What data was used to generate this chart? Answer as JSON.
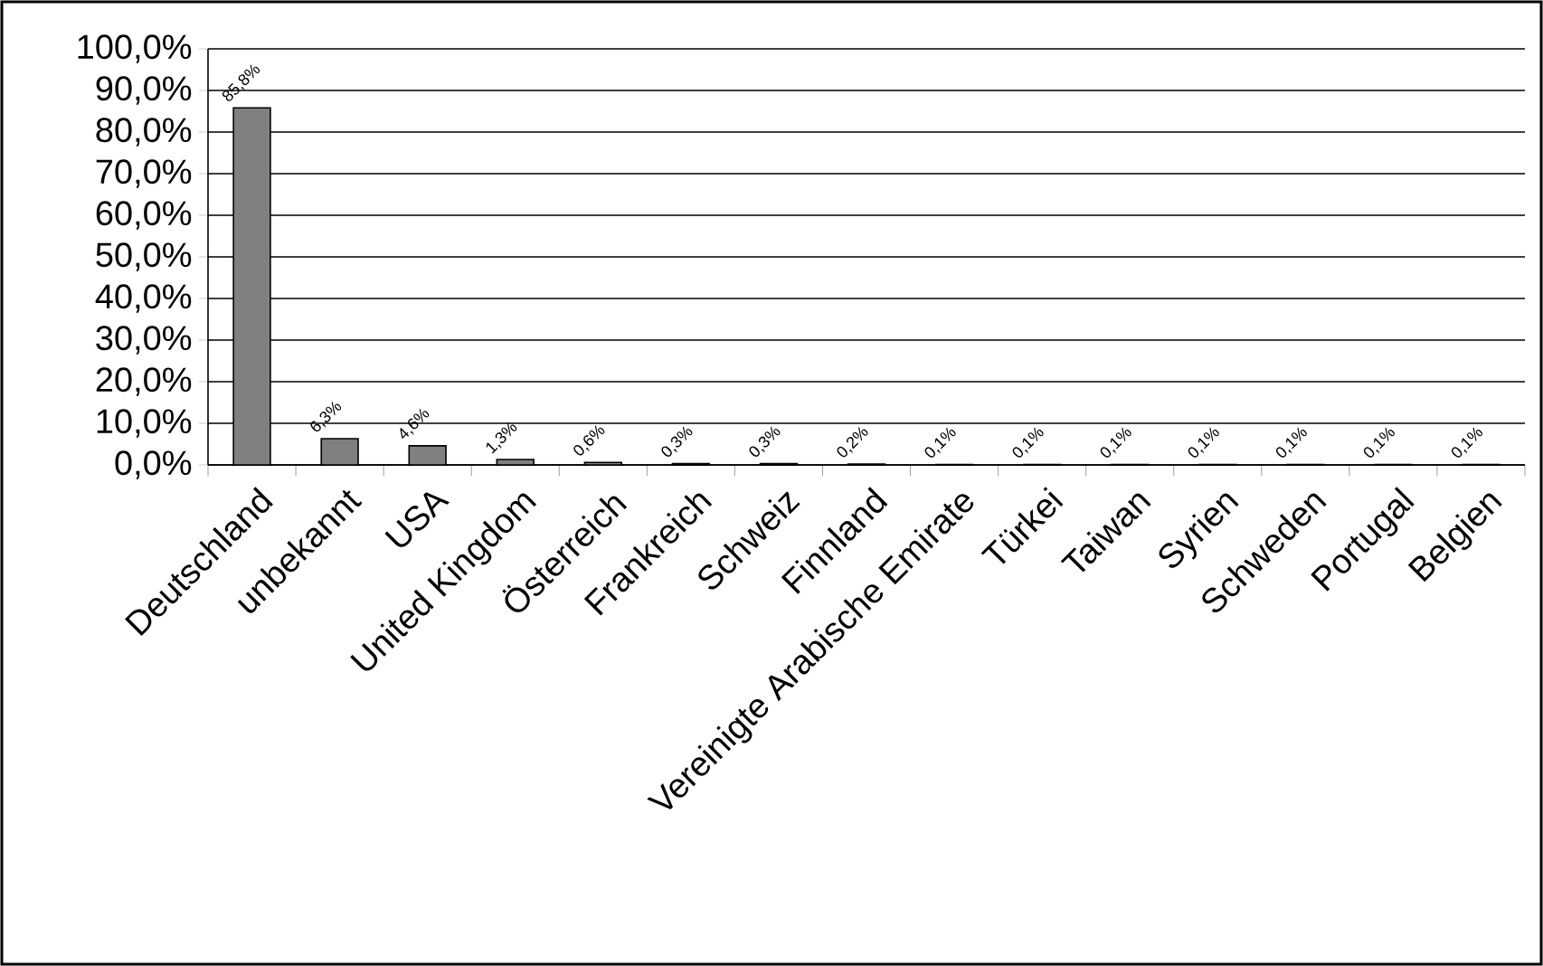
{
  "chart_data": {
    "type": "bar",
    "categories": [
      "Deutschland",
      "unbekannt",
      "USA",
      "United Kingdom",
      "Österreich",
      "Frankreich",
      "Schweiz",
      "Finnland",
      "Vereinigte Arabische Emirate",
      "Türkei",
      "Taiwan",
      "Syrien",
      "Schweden",
      "Portugal",
      "Belgien"
    ],
    "values": [
      85.8,
      6.3,
      4.6,
      1.3,
      0.6,
      0.3,
      0.3,
      0.2,
      0.1,
      0.1,
      0.1,
      0.1,
      0.1,
      0.1,
      0.1
    ],
    "value_labels": [
      "85,8%",
      "6,3%",
      "4,6%",
      "1,3%",
      "0,6%",
      "0,3%",
      "0,3%",
      "0,2%",
      "0,1%",
      "0,1%",
      "0,1%",
      "0,1%",
      "0,1%",
      "0,1%",
      "0,1%"
    ],
    "color": "#808080",
    "ylim": [
      0,
      100
    ],
    "yticks": [
      {
        "value": 0,
        "label": "0,0%"
      },
      {
        "value": 10,
        "label": "10,0%"
      },
      {
        "value": 20,
        "label": "20,0%"
      },
      {
        "value": 30,
        "label": "30,0%"
      },
      {
        "value": 40,
        "label": "40,0%"
      },
      {
        "value": 50,
        "label": "50,0%"
      },
      {
        "value": 60,
        "label": "60,0%"
      },
      {
        "value": 70,
        "label": "70,0%"
      },
      {
        "value": 80,
        "label": "80,0%"
      },
      {
        "value": 90,
        "label": "90,0%"
      },
      {
        "value": 100,
        "label": "100,0%"
      }
    ],
    "grid": "y"
  }
}
